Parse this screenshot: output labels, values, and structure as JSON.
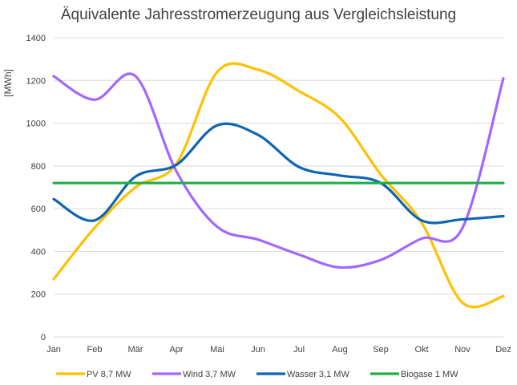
{
  "chart_data": {
    "type": "line",
    "title": "Äquivalente Jahresstromerzeugung aus Vergleichsleistung",
    "xlabel": "",
    "ylabel": "[MWh]",
    "ylim": [
      0,
      1400
    ],
    "yticks": [
      0,
      200,
      400,
      600,
      800,
      1000,
      1200,
      1400
    ],
    "categories": [
      "Jan",
      "Feb",
      "Mär",
      "Apr",
      "Mai",
      "Jun",
      "Jul",
      "Aug",
      "Sep",
      "Okt",
      "Nov",
      "Dez"
    ],
    "grid": true,
    "smooth": true,
    "legend_position": "bottom",
    "series": [
      {
        "name": "PV 8,7 MW",
        "color": "#FFC000",
        "values": [
          270,
          510,
          700,
          810,
          1240,
          1250,
          1150,
          1025,
          760,
          535,
          160,
          190
        ]
      },
      {
        "name": "Wind 3,7 MW",
        "color": "#A366FF",
        "values": [
          1220,
          1110,
          1220,
          775,
          515,
          455,
          385,
          325,
          360,
          460,
          510,
          1210
        ]
      },
      {
        "name": "Wasser 3,1 MW",
        "color": "#0F64B4",
        "values": [
          645,
          545,
          750,
          805,
          990,
          945,
          795,
          755,
          720,
          545,
          550,
          565
        ]
      },
      {
        "name": "Biogase 1 MW",
        "color": "#1FAF48",
        "values": [
          720,
          720,
          720,
          720,
          720,
          720,
          720,
          720,
          720,
          720,
          720,
          720
        ]
      }
    ]
  }
}
